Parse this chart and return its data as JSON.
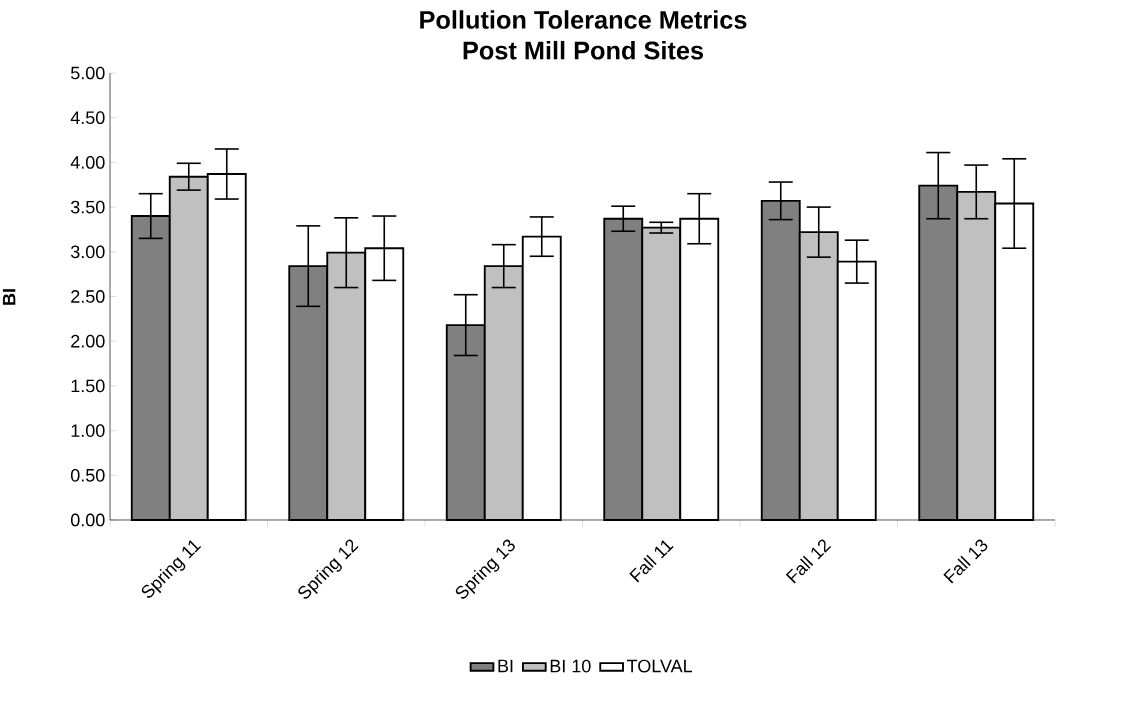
{
  "chart_data": {
    "type": "bar",
    "title": "Pollution Tolerance Metrics\nPost Mill Pond Sites",
    "ylabel": "BI",
    "categories": [
      "Spring 11",
      "Spring 12",
      "Spring 13",
      "Fall 11",
      "Fall 12",
      "Fall 13"
    ],
    "series": [
      {
        "name": "BI",
        "color": "#808080",
        "values": [
          3.4,
          2.84,
          2.18,
          3.37,
          3.57,
          3.74
        ],
        "errors": [
          0.25,
          0.45,
          0.34,
          0.14,
          0.21,
          0.37
        ]
      },
      {
        "name": "BI 10",
        "color": "#c0c0c0",
        "values": [
          3.84,
          2.99,
          2.84,
          3.27,
          3.22,
          3.67
        ],
        "errors": [
          0.15,
          0.39,
          0.24,
          0.06,
          0.28,
          0.3
        ]
      },
      {
        "name": "TOLVAL",
        "color": "#ffffff",
        "values": [
          3.87,
          3.04,
          3.17,
          3.37,
          2.89,
          3.54
        ],
        "errors": [
          0.28,
          0.36,
          0.22,
          0.28,
          0.24,
          0.5
        ]
      }
    ],
    "ylim": [
      0,
      5
    ],
    "yticks": [
      {
        "value": 0,
        "label": "0.00"
      },
      {
        "value": 0.5,
        "label": "0.50"
      },
      {
        "value": 1,
        "label": "1.00"
      },
      {
        "value": 1.5,
        "label": "1.50"
      },
      {
        "value": 2,
        "label": "2.00"
      },
      {
        "value": 2.5,
        "label": "2.50"
      },
      {
        "value": 3,
        "label": "3.00"
      },
      {
        "value": 3.5,
        "label": "3.50"
      },
      {
        "value": 4,
        "label": "4.00"
      },
      {
        "value": 4.5,
        "label": "4.50"
      },
      {
        "value": 5,
        "label": "5.00"
      }
    ],
    "legend": "bottom",
    "grid": false
  }
}
